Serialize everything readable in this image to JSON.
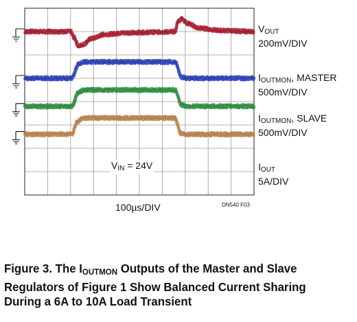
{
  "chart_data": {
    "type": "line",
    "grid": true,
    "xlabel": "100µs/DIV",
    "note": "DN540 F03",
    "annotation": {
      "prefix": "V",
      "sub": "IN",
      "suffix": " = 24V"
    },
    "x_divisions": 10,
    "y_divisions": 8,
    "x_time_per_div_us": 100,
    "series": [
      {
        "key": "vout",
        "name_main": "V",
        "name_sub": "OUT",
        "name_tail": "",
        "scale": "200mV/DIV",
        "color": "#a51c30",
        "baseline_div": 7.0,
        "points_div": [
          [
            0,
            0
          ],
          [
            2.0,
            0
          ],
          [
            2.15,
            -0.25
          ],
          [
            2.35,
            -0.62
          ],
          [
            2.55,
            -0.55
          ],
          [
            2.9,
            -0.3
          ],
          [
            3.5,
            -0.12
          ],
          [
            4.5,
            -0.05
          ],
          [
            6.0,
            -0.02
          ],
          [
            6.55,
            0
          ],
          [
            6.7,
            0.45
          ],
          [
            6.85,
            0.55
          ],
          [
            7.1,
            0.35
          ],
          [
            7.6,
            0.15
          ],
          [
            8.5,
            0.05
          ],
          [
            10,
            0
          ]
        ]
      },
      {
        "key": "master",
        "name_main": "I",
        "name_sub": "OUTMON",
        "name_tail": ", MASTER",
        "scale": "500mV/DIV",
        "color": "#2a3fb0",
        "baseline_div": 5.0,
        "points_div": [
          [
            0,
            0
          ],
          [
            2.05,
            0
          ],
          [
            2.35,
            0.6
          ],
          [
            2.6,
            0.7
          ],
          [
            6.55,
            0.7
          ],
          [
            6.85,
            0.05
          ],
          [
            7.1,
            0
          ],
          [
            10,
            0
          ]
        ]
      },
      {
        "key": "slave",
        "name_main": "I",
        "name_sub": "OUTMON",
        "name_tail": ", SLAVE",
        "scale": "500mV/DIV",
        "color": "#2e8b3e",
        "baseline_div": 3.8,
        "points_div": [
          [
            0,
            0
          ],
          [
            2.05,
            0
          ],
          [
            2.35,
            0.6
          ],
          [
            2.6,
            0.7
          ],
          [
            6.55,
            0.7
          ],
          [
            6.85,
            0.05
          ],
          [
            7.1,
            0
          ],
          [
            10,
            0
          ]
        ]
      },
      {
        "key": "iout",
        "name_main": "I",
        "name_sub": "OUT",
        "name_tail": "",
        "scale": "5A/DIV",
        "color": "#b5814a",
        "baseline_div": 2.6,
        "points_div": [
          [
            0,
            0
          ],
          [
            2.05,
            0
          ],
          [
            2.3,
            0.55
          ],
          [
            2.55,
            0.7
          ],
          [
            6.55,
            0.7
          ],
          [
            6.8,
            0.05
          ],
          [
            7.05,
            0
          ],
          [
            10,
            0
          ]
        ]
      }
    ]
  },
  "caption": {
    "line1_a": "Figure 3. The I",
    "line1_sub": "OUTMON",
    "line1_b": " Outputs of the Master and Slave",
    "line2": "Regulators of Figure 1 Show Balanced Current Sharing",
    "line3": "During a 6A to 10A Load Transient"
  }
}
